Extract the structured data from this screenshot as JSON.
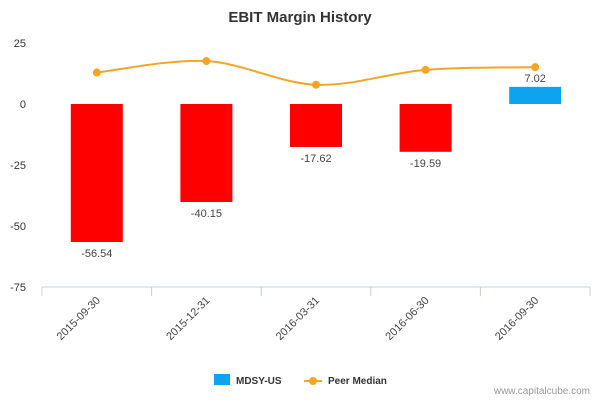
{
  "chart_data": {
    "type": "bar",
    "title": "EBIT Margin History",
    "categories": [
      "2015-09-30",
      "2015-12-31",
      "2016-03-31",
      "2016-06-30",
      "2016-09-30"
    ],
    "series": [
      {
        "name": "MDSY-US",
        "type": "bar",
        "values": [
          -56.54,
          -40.15,
          -17.62,
          -19.59,
          7.02
        ],
        "data_labels": [
          "-56.54",
          "-40.15",
          "-17.62",
          "-19.59",
          "7.02"
        ],
        "color_negative": "#ff0000",
        "color_positive": "#0da4ef"
      },
      {
        "name": "Peer Median",
        "type": "line",
        "values": [
          12.9,
          17.6,
          7.9,
          14.0,
          15.1
        ],
        "color": "#f7a424"
      }
    ],
    "yticks": [
      "25",
      "0",
      "-25",
      "-50",
      "-75"
    ],
    "ytick_values": [
      25,
      0,
      -25,
      -50,
      -75
    ],
    "ylim": [
      -75,
      25
    ],
    "xlabel": "",
    "ylabel": "",
    "grid": false,
    "legend": "bottom-center"
  },
  "credit": "www.capitalcube.com"
}
